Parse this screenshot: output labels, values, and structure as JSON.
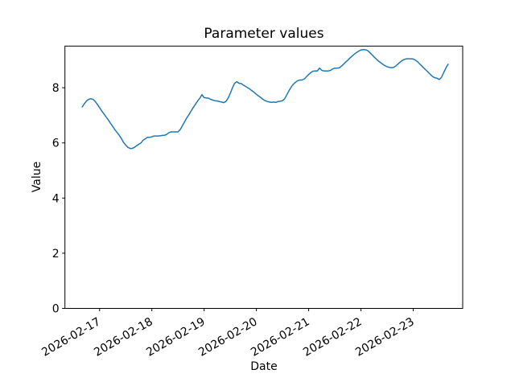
{
  "chart_data": {
    "type": "line",
    "title": "Parameter values",
    "xlabel": "Date",
    "ylabel": "Value",
    "line_color": "#1f77b4",
    "background_color": "#ffffff",
    "grid": false,
    "legend": false,
    "x_unit": "hours, hourly samples starting 2026-02-16 16:00",
    "x_start": "2026-02-16 16:00",
    "x_step_hours": 1,
    "xlim_hours": [
      -7.9,
      174.7
    ],
    "ylim": [
      0,
      9.51
    ],
    "y_ticks": [
      0,
      2,
      4,
      6,
      8
    ],
    "x_tick_hours": [
      8,
      32,
      56,
      80,
      104,
      128,
      152
    ],
    "x_tick_labels": [
      "2026-02-17",
      "2026-02-18",
      "2026-02-19",
      "2026-02-20",
      "2026-02-21",
      "2026-02-22",
      "2026-02-23"
    ],
    "x_tick_rotation_deg": 30,
    "values": [
      7.3,
      7.42,
      7.52,
      7.58,
      7.6,
      7.58,
      7.5,
      7.4,
      7.28,
      7.16,
      7.05,
      6.94,
      6.83,
      6.71,
      6.6,
      6.48,
      6.38,
      6.28,
      6.16,
      6.02,
      5.92,
      5.84,
      5.8,
      5.8,
      5.84,
      5.9,
      5.95,
      6.0,
      6.1,
      6.15,
      6.2,
      6.2,
      6.22,
      6.25,
      6.25,
      6.25,
      6.26,
      6.27,
      6.28,
      6.32,
      6.38,
      6.4,
      6.4,
      6.4,
      6.4,
      6.48,
      6.62,
      6.76,
      6.9,
      7.02,
      7.15,
      7.28,
      7.4,
      7.52,
      7.62,
      7.75,
      7.64,
      7.63,
      7.62,
      7.58,
      7.55,
      7.53,
      7.52,
      7.5,
      7.48,
      7.46,
      7.5,
      7.62,
      7.8,
      8.0,
      8.16,
      8.22,
      8.16,
      8.15,
      8.1,
      8.05,
      8.0,
      7.95,
      7.89,
      7.83,
      7.76,
      7.7,
      7.64,
      7.58,
      7.53,
      7.5,
      7.48,
      7.47,
      7.48,
      7.47,
      7.5,
      7.51,
      7.53,
      7.6,
      7.75,
      7.9,
      8.03,
      8.13,
      8.2,
      8.26,
      8.28,
      8.28,
      8.32,
      8.4,
      8.48,
      8.55,
      8.6,
      8.61,
      8.61,
      8.71,
      8.63,
      8.61,
      8.61,
      8.61,
      8.63,
      8.68,
      8.71,
      8.71,
      8.72,
      8.78,
      8.85,
      8.93,
      9.0,
      9.08,
      9.15,
      9.22,
      9.28,
      9.33,
      9.37,
      9.38,
      9.38,
      9.35,
      9.28,
      9.2,
      9.12,
      9.04,
      8.97,
      8.91,
      8.85,
      8.8,
      8.76,
      8.74,
      8.73,
      8.74,
      8.79,
      8.86,
      8.93,
      8.99,
      9.03,
      9.05,
      9.05,
      9.05,
      9.04,
      9.0,
      8.94,
      8.86,
      8.78,
      8.7,
      8.63,
      8.55,
      8.47,
      8.4,
      8.36,
      8.34,
      8.3,
      8.38,
      8.55,
      8.72,
      8.85
    ]
  }
}
